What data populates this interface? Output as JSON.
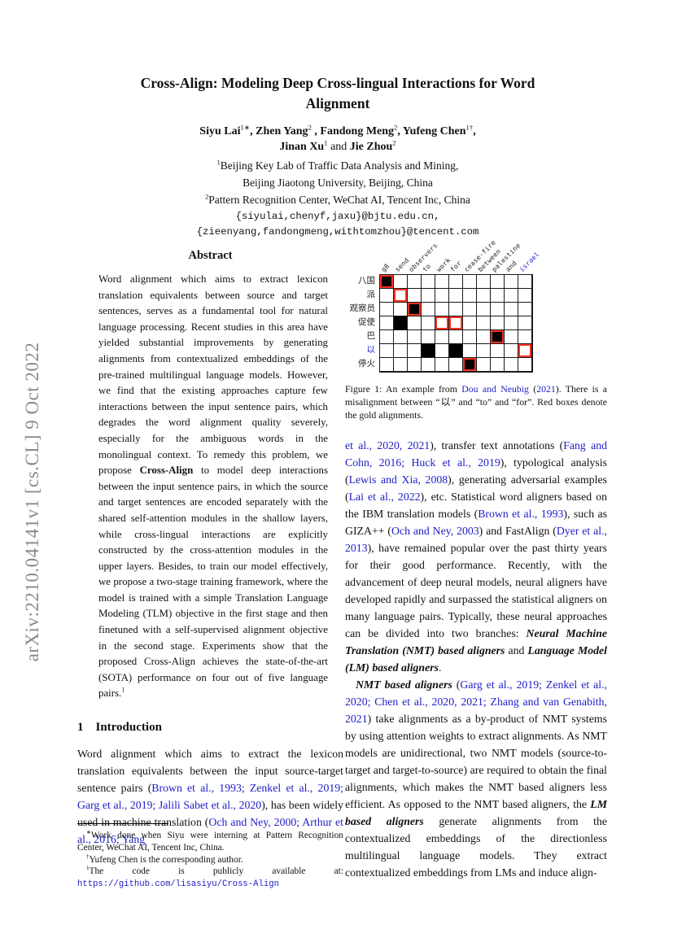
{
  "arxiv_banner": "arXiv:2210.04141v1  [cs.CL]  9 Oct 2022",
  "header": {
    "title_lines": [
      "Cross-Align: Modeling Deep Cross-lingual Interactions for Word",
      "Alignment"
    ],
    "author_line1_runs": [
      {
        "t": "Siyu Lai",
        "s": "b"
      },
      {
        "t": "1∗",
        "s": "sup"
      },
      {
        "t": ", ",
        "s": "b"
      },
      {
        "t": "Zhen Yang",
        "s": "b"
      },
      {
        "t": "2",
        "s": "sup"
      },
      {
        "t": " , ",
        "s": "b"
      },
      {
        "t": "Fandong Meng",
        "s": "b"
      },
      {
        "t": "2",
        "s": "sup"
      },
      {
        "t": ", ",
        "s": "b"
      },
      {
        "t": "Yufeng Chen",
        "s": "b"
      },
      {
        "t": "1†",
        "s": "sup"
      },
      {
        "t": ",",
        "s": "b"
      }
    ],
    "author_line2_runs": [
      {
        "t": "Jinan Xu",
        "s": "b"
      },
      {
        "t": "1",
        "s": "sup"
      },
      {
        "t": " and "
      },
      {
        "t": "Jie Zhou",
        "s": "b"
      },
      {
        "t": "2",
        "s": "sup"
      }
    ],
    "affil_line1_runs": [
      {
        "t": "1",
        "s": "sup"
      },
      {
        "t": "Beijing Key Lab of Traffic Data Analysis and Mining,"
      }
    ],
    "affil_line2_runs": [
      {
        "t": "Beijing Jiaotong University, Beijing, China"
      }
    ],
    "affil_line3_runs": [
      {
        "t": "2",
        "s": "sup"
      },
      {
        "t": "Pattern Recognition Center, WeChat AI, Tencent Inc, China"
      }
    ],
    "email_line1": "{siyulai,chenyf,jaxu}@bjtu.edu.cn,",
    "email_line2": "{zieenyang,fandongmeng,withtomzhou}@tencent.com"
  },
  "abstract": {
    "heading": "Abstract",
    "body_runs": [
      {
        "t": "Word alignment which aims to extract lexicon translation equivalents between source and target sentences, serves as a fundamental tool for natural language processing. Recent studies in this area have yielded substantial improvements by generating alignments from contextualized embeddings of the pre-trained multilingual language models. However, we find that the existing approaches capture few interactions between the input sentence pairs, which degrades the word alignment quality severely, especially for the ambiguous words in the monolingual context. To remedy this problem, we propose "
      },
      {
        "t": "Cross-Align",
        "s": "b"
      },
      {
        "t": " to model deep interactions between the input sentence pairs, in which the source and target sentences are encoded separately with the shared self-attention modules in the shallow layers, while cross-lingual interactions are explicitly constructed by the cross-attention modules in the upper layers. Besides, to train our model effectively, we propose a two-stage training framework, where the model is trained with a simple Translation Language Modeling (TLM) objective in the first stage and then finetuned with a self-supervised alignment objective in the second stage. Experiments show that the proposed Cross-Align achieves the state-of-the-art (SOTA) performance on four out of five language pairs."
      },
      {
        "t": "1",
        "s": "sup cite"
      }
    ]
  },
  "section1": {
    "number": "1",
    "heading": "Introduction",
    "para1_runs": [
      {
        "t": "Word alignment which aims to extract the lexicon translation equivalents between the input source-target sentence pairs ("
      },
      {
        "t": "Brown et al., 1993; Zenkel et al., 2019; Garg et al., 2019; Jalili Sabet et al., 2020",
        "s": "cite"
      },
      {
        "t": "), has been widely used in machine translation ("
      },
      {
        "t": "Och and Ney, 2000; Arthur et al., 2016; Yang",
        "s": "cite"
      }
    ]
  },
  "footnotes": {
    "fn1_runs": [
      {
        "t": "∗",
        "s": "sup"
      },
      {
        "t": "Work done when Siyu were interning at Pattern Recognition Center, WeChat AI, Tencent Inc, China."
      }
    ],
    "fn2_runs": [
      {
        "t": "†",
        "s": "sup"
      },
      {
        "t": "Yufeng Chen is the corresponding author."
      }
    ],
    "fn3_runs": [
      {
        "t": "1",
        "s": "sup"
      },
      {
        "t": "The code is publicly available at: "
      },
      {
        "t": "https://github.com/lisasiyu/Cross-Align",
        "s": "link"
      }
    ]
  },
  "figure1": {
    "type": "alignment-matrix",
    "col_labels": [
      "g8",
      "send",
      "observers",
      "to",
      "work",
      "for",
      "cease-fire",
      "between",
      "palestine",
      "and",
      "israel"
    ],
    "row_labels": [
      "八国",
      "派",
      "观察员",
      "促使",
      "巴",
      "以",
      "停火"
    ],
    "blue_col_index": 10,
    "blue_row_index": 5,
    "predicted_black_cells": [
      [
        0,
        0
      ],
      [
        2,
        2
      ],
      [
        3,
        1
      ],
      [
        4,
        8
      ],
      [
        5,
        3
      ],
      [
        5,
        5
      ],
      [
        6,
        6
      ]
    ],
    "gold_red_cells": [
      [
        0,
        0
      ],
      [
        1,
        1
      ],
      [
        2,
        2
      ],
      [
        3,
        4
      ],
      [
        3,
        5
      ],
      [
        4,
        8
      ],
      [
        5,
        10
      ],
      [
        6,
        6
      ]
    ],
    "colors": {
      "predicted": "#000000",
      "gold": "#ff3120",
      "highlight_blue": "#2120c8"
    },
    "caption_runs": [
      {
        "t": "Figure 1:  An example from "
      },
      {
        "t": "Dou and Neubig",
        "s": "cite"
      },
      {
        "t": " ("
      },
      {
        "t": "2021",
        "s": "cite"
      },
      {
        "t": "). There is a misalignment between “以” and “to” and “for”. Red boxes denote the gold alignments."
      }
    ]
  },
  "right_column": {
    "para1_runs": [
      {
        "t": "et al., 2020, 2021",
        "s": "cite"
      },
      {
        "t": "), transfer text annotations ("
      },
      {
        "t": "Fang and Cohn, 2016; Huck et al., 2019",
        "s": "cite"
      },
      {
        "t": "), typological analysis ("
      },
      {
        "t": "Lewis and Xia, 2008",
        "s": "cite"
      },
      {
        "t": "), generating adversarial examples ("
      },
      {
        "t": "Lai et al., 2022",
        "s": "cite"
      },
      {
        "t": "), etc.  Statistical word aligners based on the IBM translation models ("
      },
      {
        "t": "Brown et al., 1993",
        "s": "cite"
      },
      {
        "t": "), such as GIZA++ ("
      },
      {
        "t": "Och and Ney, 2003",
        "s": "cite"
      },
      {
        "t": ") and FastAlign ("
      },
      {
        "t": "Dyer et al., 2013",
        "s": "cite"
      },
      {
        "t": "), have remained popular over the past thirty years for their good performance. Recently, with the advancement of deep neural models, neural aligners have developed rapidly and surpassed the statistical aligners on many language pairs. Typically, these neural approaches can be divided into two branches: "
      },
      {
        "t": "Neural Machine Translation (NMT) based aligners",
        "s": "bi"
      },
      {
        "t": " and "
      },
      {
        "t": "Language Model (LM) based aligners",
        "s": "bi"
      },
      {
        "t": "."
      }
    ],
    "para2_runs": [
      {
        "t": "NMT based aligners",
        "s": "bi"
      },
      {
        "t": " ("
      },
      {
        "t": "Garg et al., 2019; Zenkel et al., 2020; Chen et al., 2020, 2021; Zhang and van Genabith, 2021",
        "s": "cite"
      },
      {
        "t": ") take alignments as a by-product of NMT systems by using attention weights to extract alignments.  As NMT models are unidirectional, two NMT models (source-to-target and target-to-source) are required to obtain the final alignments, which makes the NMT based aligners less efficient. As opposed to the NMT based aligners, the "
      },
      {
        "t": "LM based aligners",
        "s": "bi"
      },
      {
        "t": " generate alignments from the contextualized embeddings of the directionless multilingual language models.  They extract contextualized embeddings from LMs and induce align-"
      }
    ]
  }
}
